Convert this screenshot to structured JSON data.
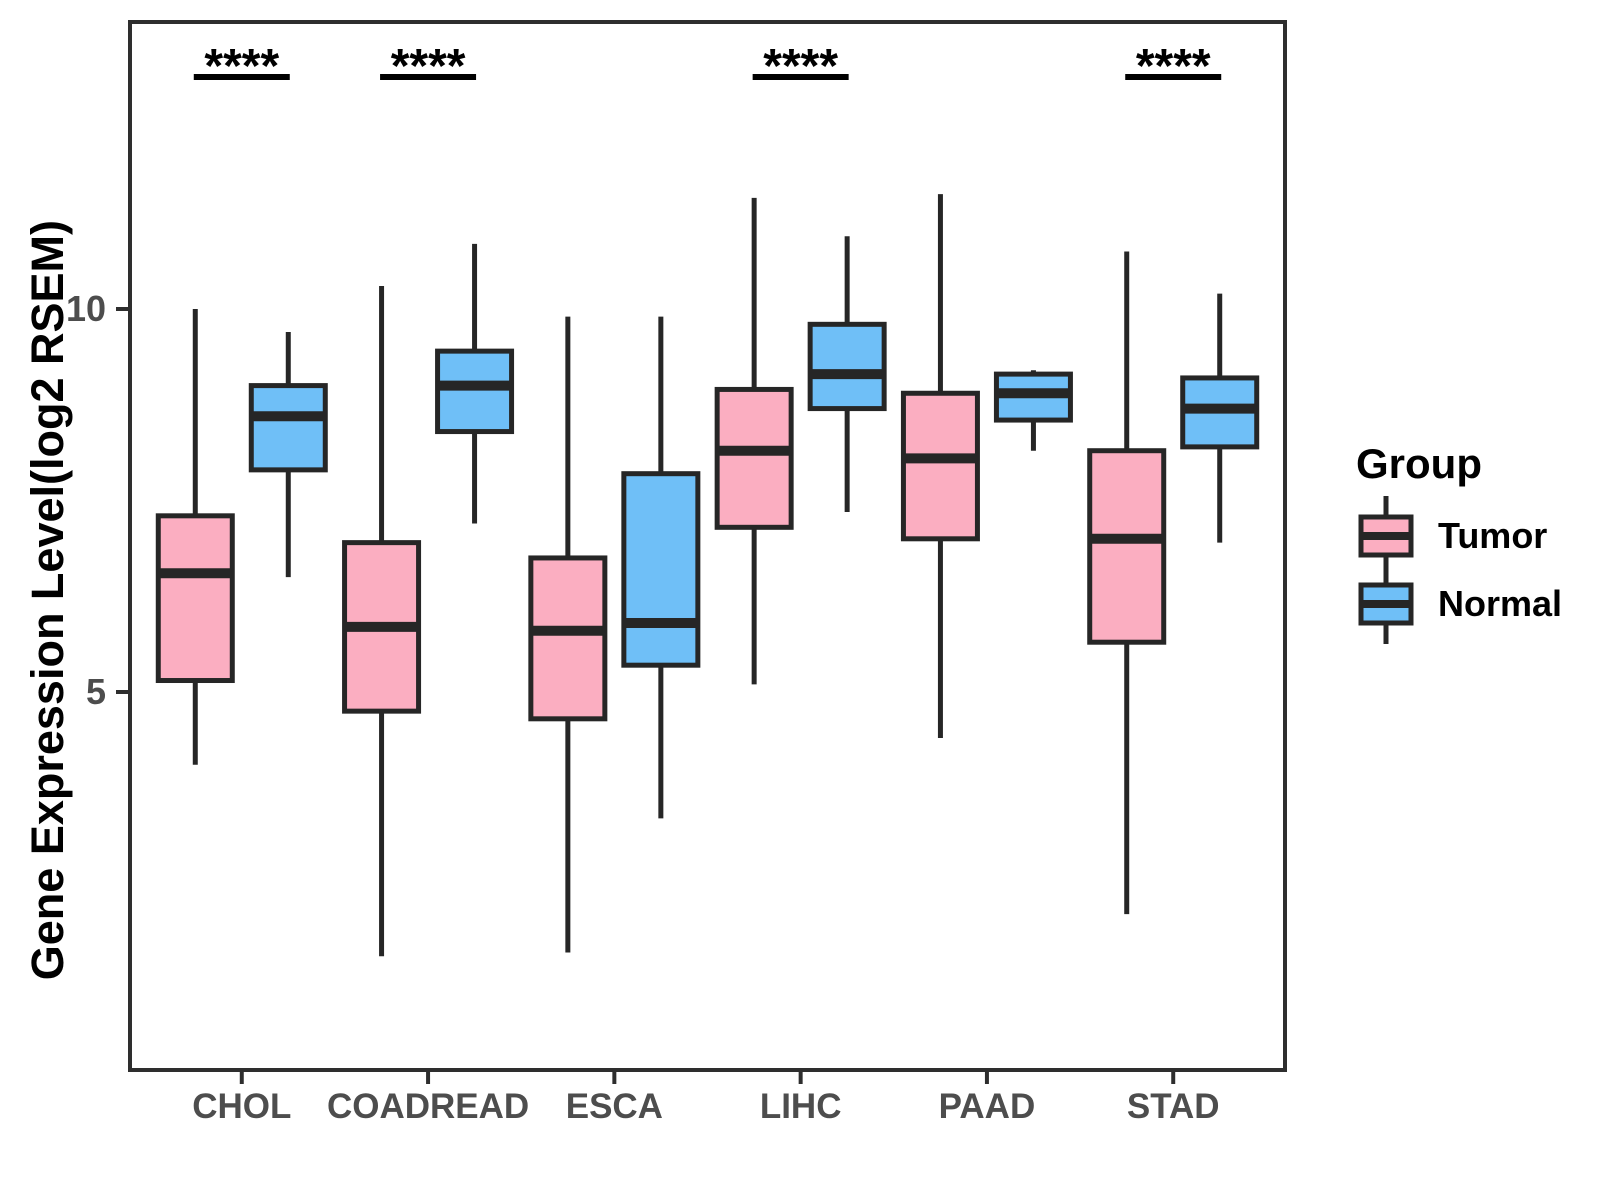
{
  "chart_data": {
    "type": "boxplot",
    "title": "",
    "ylabel": "Gene Expression Level(log2 RSEM)",
    "xlabel": "",
    "categories": [
      "CHOL",
      "COADREAD",
      "ESCA",
      "LIHC",
      "PAAD",
      "STAD"
    ],
    "groups": [
      "Tumor",
      "Normal"
    ],
    "y_axis": {
      "ticks": [
        {
          "label": "10",
          "value": 10
        },
        {
          "label": "5",
          "value": 5
        }
      ],
      "range_shown": [
        0.8,
        12.5
      ],
      "grid": false
    },
    "series": [
      {
        "name": "Tumor",
        "color": "#FBAEC1",
        "boxes": [
          {
            "category": "CHOL",
            "low": 4.05,
            "q1": 5.15,
            "median": 6.55,
            "q3": 7.3,
            "high": 10.0
          },
          {
            "category": "COADREAD",
            "low": 1.55,
            "q1": 4.75,
            "median": 5.85,
            "q3": 6.95,
            "high": 10.3
          },
          {
            "category": "ESCA",
            "low": 1.6,
            "q1": 4.65,
            "median": 5.8,
            "q3": 6.75,
            "high": 9.9
          },
          {
            "category": "LIHC",
            "low": 5.1,
            "q1": 7.15,
            "median": 8.15,
            "q3": 8.95,
            "high": 11.45
          },
          {
            "category": "PAAD",
            "low": 4.4,
            "q1": 7.0,
            "median": 8.05,
            "q3": 8.9,
            "high": 11.5
          },
          {
            "category": "STAD",
            "low": 2.1,
            "q1": 5.65,
            "median": 7.0,
            "q3": 8.15,
            "high": 10.75
          }
        ]
      },
      {
        "name": "Normal",
        "color": "#6FBFF7",
        "boxes": [
          {
            "category": "CHOL",
            "low": 6.5,
            "q1": 7.9,
            "median": 8.6,
            "q3": 9.0,
            "high": 9.7
          },
          {
            "category": "COADREAD",
            "low": 7.2,
            "q1": 8.4,
            "median": 9.0,
            "q3": 9.45,
            "high": 10.85
          },
          {
            "category": "ESCA",
            "low": 3.35,
            "q1": 5.35,
            "median": 5.9,
            "q3": 7.85,
            "high": 9.9
          },
          {
            "category": "LIHC",
            "low": 7.35,
            "q1": 8.7,
            "median": 9.15,
            "q3": 9.8,
            "high": 10.95
          },
          {
            "category": "PAAD",
            "low": 8.15,
            "q1": 8.55,
            "median": 8.9,
            "q3": 9.15,
            "high": 9.2
          },
          {
            "category": "STAD",
            "low": 6.95,
            "q1": 8.2,
            "median": 8.7,
            "q3": 9.1,
            "high": 10.2
          }
        ]
      }
    ],
    "significance": [
      {
        "category": "CHOL",
        "label": "****"
      },
      {
        "category": "COADREAD",
        "label": "****"
      },
      {
        "category": "LIHC",
        "label": "****"
      },
      {
        "category": "STAD",
        "label": "****"
      }
    ],
    "legend": {
      "title": "Group",
      "position": "right",
      "items": [
        {
          "label": "Tumor",
          "color": "#FBAEC1"
        },
        {
          "label": "Normal",
          "color": "#6FBFF7"
        }
      ]
    },
    "style": {
      "box_border": "#262626",
      "axis_line": "#2e2e2e",
      "axis_text": "#4d4d4d",
      "significance_color": "#000000"
    }
  }
}
